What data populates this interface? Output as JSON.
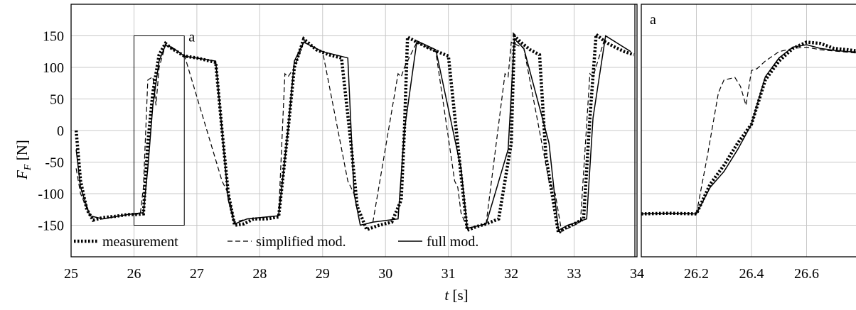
{
  "chart_data": [
    {
      "type": "line",
      "xlabel_var": "t",
      "xlabel_unit": "[s]",
      "ylabel_var": "F",
      "ylabel_sub": "F",
      "ylabel_unit": "[N]",
      "xlim": [
        25,
        34
      ],
      "ylim": [
        -200,
        200
      ],
      "x_ticks": [
        25,
        26,
        27,
        28,
        29,
        30,
        31,
        32,
        33,
        34
      ],
      "y_ticks": [
        -150,
        -100,
        -50,
        0,
        50,
        100,
        150
      ],
      "grid": true,
      "legend_position": "bottom",
      "inset_box": {
        "label": "a",
        "x": [
          26.0,
          26.8
        ],
        "y": [
          -150,
          150
        ]
      },
      "series": [
        {
          "name": "measurement",
          "style": "dotted",
          "x": [
            25.08,
            25.15,
            25.25,
            25.35,
            25.5,
            25.7,
            25.9,
            26.05,
            26.15,
            26.22,
            26.3,
            26.4,
            26.5,
            26.6,
            26.8,
            27.0,
            27.3,
            27.4,
            27.5,
            27.6,
            27.75,
            27.9,
            28.1,
            28.3,
            28.45,
            28.55,
            28.7,
            28.9,
            29.1,
            29.3,
            29.45,
            29.55,
            29.7,
            29.9,
            30.1,
            30.25,
            30.3,
            30.35,
            30.5,
            30.7,
            31.0,
            31.2,
            31.3,
            31.45,
            31.6,
            31.8,
            32.0,
            32.05,
            32.15,
            32.3,
            32.45,
            32.55,
            32.75,
            32.85,
            33.0,
            33.15,
            33.25,
            33.35,
            33.5,
            33.65,
            33.8,
            33.95
          ],
          "y": [
            0,
            -80,
            -125,
            -142,
            -138,
            -136,
            -133,
            -133,
            -132,
            -20,
            60,
            120,
            138,
            130,
            118,
            115,
            108,
            0,
            -100,
            -150,
            -148,
            -140,
            -140,
            -137,
            0,
            100,
            145,
            128,
            120,
            115,
            -20,
            -120,
            -157,
            -150,
            -145,
            -110,
            0,
            148,
            140,
            130,
            118,
            -70,
            -158,
            -152,
            -148,
            -140,
            -20,
            150,
            140,
            128,
            120,
            -40,
            -162,
            -155,
            -148,
            -140,
            20,
            152,
            140,
            132,
            125,
            120
          ]
        },
        {
          "name": "simplified mod.",
          "style": "dashed",
          "x": [
            25.08,
            25.15,
            25.3,
            25.5,
            25.9,
            26.1,
            26.15,
            26.22,
            26.3,
            26.35,
            26.4,
            26.5,
            26.6,
            26.8,
            27.4,
            27.45,
            27.5,
            27.6,
            27.8,
            28.3,
            28.4,
            28.45,
            28.55,
            28.7,
            29.0,
            29.4,
            29.45,
            29.5,
            29.6,
            29.8,
            30.2,
            30.25,
            30.3,
            30.5,
            30.8,
            31.1,
            31.15,
            31.2,
            31.3,
            31.6,
            31.9,
            31.95,
            32.0,
            32.2,
            32.6,
            32.65,
            32.7,
            32.8,
            33.1,
            33.25,
            33.3,
            33.5,
            33.9
          ],
          "y": [
            -60,
            -100,
            -135,
            -140,
            -133,
            -132,
            -90,
            80,
            85,
            40,
            100,
            135,
            130,
            120,
            -80,
            -90,
            -100,
            -145,
            -140,
            -135,
            90,
            85,
            100,
            140,
            125,
            -80,
            -90,
            -100,
            -150,
            -145,
            90,
            85,
            100,
            140,
            125,
            -80,
            -90,
            -130,
            -155,
            -148,
            90,
            85,
            140,
            130,
            -80,
            -90,
            -100,
            -160,
            -145,
            90,
            85,
            150,
            125
          ]
        },
        {
          "name": "full mod.",
          "style": "solid",
          "x": [
            25.08,
            25.15,
            25.3,
            25.5,
            25.9,
            26.15,
            26.22,
            26.3,
            26.4,
            26.5,
            26.6,
            26.8,
            27.3,
            27.4,
            27.5,
            27.6,
            27.8,
            28.3,
            28.45,
            28.55,
            28.7,
            29.0,
            29.4,
            29.5,
            29.6,
            29.8,
            30.2,
            30.3,
            30.5,
            30.8,
            31.2,
            31.3,
            31.6,
            31.95,
            32.05,
            32.2,
            32.6,
            32.75,
            32.9,
            33.2,
            33.3,
            33.5,
            33.9
          ],
          "y": [
            -30,
            -90,
            -135,
            -140,
            -133,
            -130,
            -60,
            40,
            110,
            135,
            132,
            118,
            110,
            0,
            -110,
            -148,
            -140,
            -135,
            0,
            110,
            140,
            125,
            115,
            -100,
            -150,
            -145,
            -140,
            0,
            142,
            128,
            -60,
            -155,
            -148,
            -30,
            145,
            130,
            -20,
            -158,
            -150,
            -140,
            20,
            150,
            125
          ]
        }
      ]
    },
    {
      "type": "line",
      "panel_label": "a",
      "xlim": [
        26.0,
        26.8
      ],
      "ylim": [
        -200,
        200
      ],
      "x_ticks": [
        26.2,
        26.4,
        26.6
      ],
      "grid": true,
      "series": [
        {
          "name": "measurement",
          "style": "dotted",
          "x": [
            26.0,
            26.1,
            26.2,
            26.25,
            26.3,
            26.35,
            26.4,
            26.45,
            26.5,
            26.55,
            26.6,
            26.65,
            26.7,
            26.75,
            26.8
          ],
          "y": [
            -132,
            -131,
            -132,
            -85,
            -55,
            -20,
            10,
            80,
            110,
            130,
            140,
            138,
            130,
            128,
            125
          ]
        },
        {
          "name": "simplified mod.",
          "style": "dashed",
          "x": [
            26.0,
            26.1,
            26.2,
            26.24,
            26.28,
            26.3,
            26.34,
            26.36,
            26.38,
            26.4,
            26.42,
            26.45,
            26.5,
            26.55,
            26.6,
            26.65,
            26.7,
            26.75,
            26.8
          ],
          "y": [
            -132,
            -131,
            -132,
            -40,
            60,
            80,
            84,
            70,
            40,
            95,
            98,
            110,
            125,
            130,
            132,
            128,
            126,
            124,
            122
          ]
        },
        {
          "name": "full mod.",
          "style": "solid",
          "x": [
            26.0,
            26.1,
            26.2,
            26.25,
            26.3,
            26.35,
            26.4,
            26.45,
            26.5,
            26.55,
            26.6,
            26.65,
            26.7,
            26.75,
            26.8
          ],
          "y": [
            -132,
            -131,
            -132,
            -90,
            -65,
            -30,
            10,
            85,
            115,
            132,
            136,
            130,
            127,
            125,
            124
          ]
        }
      ]
    }
  ]
}
